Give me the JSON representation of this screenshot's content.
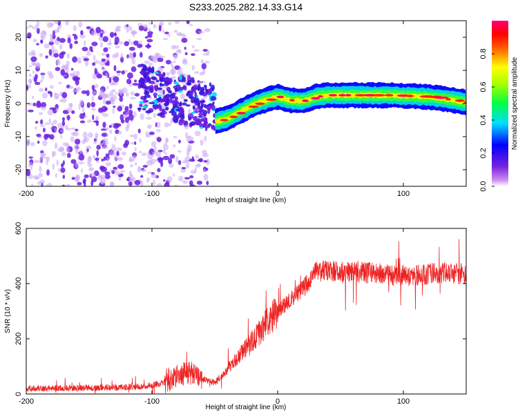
{
  "title": "S233.2025.282.14.33.G14",
  "colors": {
    "snr_line": "#ee2222",
    "axis": "#000000",
    "scatter_core": "#6a1de0",
    "scatter_halo": "#c9a6f5"
  },
  "colorbar": {
    "label": "Normalized spectral amplitude",
    "range": [
      0,
      1
    ],
    "ticks": [
      "0.0",
      "0.2",
      "0.4",
      "0.6",
      "0.8"
    ],
    "tick_values": [
      0.0,
      0.2,
      0.4,
      0.6,
      0.8
    ],
    "colormap": "rainbow (magenta-blue-cyan-green-yellow-red-pink)"
  },
  "chart_data": [
    {
      "type": "heatmap",
      "name": "spectrogram",
      "xlabel": "Height of straight line (km)",
      "ylabel": "Frequency (Hz)",
      "xlim": [
        -200,
        150
      ],
      "ylim": [
        -25,
        25
      ],
      "xticks": [
        -200,
        -100,
        0,
        100
      ],
      "xtick_labels": [
        "-200",
        "-100",
        "0",
        "100"
      ],
      "yticks": [
        -20,
        -10,
        0,
        10,
        20
      ],
      "ytick_labels": [
        "-20",
        "-10",
        "0",
        "10",
        "20"
      ],
      "description_series": [
        {
          "name": "dominant frequency ridge",
          "x": [
            -50,
            -45,
            -40,
            -35,
            -30,
            -25,
            -20,
            -15,
            -10,
            -5,
            0,
            5,
            10,
            15,
            20,
            25,
            30,
            40,
            50,
            60,
            70,
            80,
            90,
            100,
            110,
            120,
            130,
            140,
            150
          ],
          "y": [
            -5.5,
            -5,
            -4.5,
            -3.5,
            -2.5,
            -1.5,
            -0.5,
            0.3,
            1,
            1.5,
            2,
            1.5,
            1,
            0.8,
            0.8,
            1.2,
            2,
            2.5,
            2.5,
            2.5,
            2.5,
            2.5,
            2.5,
            2.3,
            2.2,
            2,
            1.5,
            1,
            0.3
          ]
        }
      ]
    },
    {
      "type": "line",
      "name": "snr",
      "xlabel": "Height of straight line (km)",
      "ylabel": "SNR (10 * v/v)",
      "xlim": [
        -200,
        150
      ],
      "ylim": [
        0,
        600
      ],
      "xticks": [
        -200,
        -100,
        0,
        100
      ],
      "xtick_labels": [
        "-200",
        "-100",
        "0",
        "100"
      ],
      "yticks": [
        0,
        200,
        400,
        600
      ],
      "ytick_labels": [
        "0",
        "200",
        "400",
        "600"
      ],
      "series": [
        {
          "name": "SNR envelope",
          "x": [
            -200,
            -150,
            -120,
            -100,
            -90,
            -80,
            -70,
            -60,
            -50,
            -40,
            -30,
            -20,
            -10,
            0,
            10,
            20,
            30,
            40,
            50,
            60,
            70,
            80,
            90,
            100,
            110,
            120,
            130,
            140,
            150
          ],
          "y": [
            20,
            22,
            25,
            30,
            45,
            65,
            80,
            55,
            40,
            90,
            140,
            190,
            250,
            300,
            340,
            380,
            440,
            450,
            440,
            445,
            440,
            435,
            430,
            430,
            430,
            435,
            440,
            440,
            430
          ]
        }
      ]
    }
  ]
}
